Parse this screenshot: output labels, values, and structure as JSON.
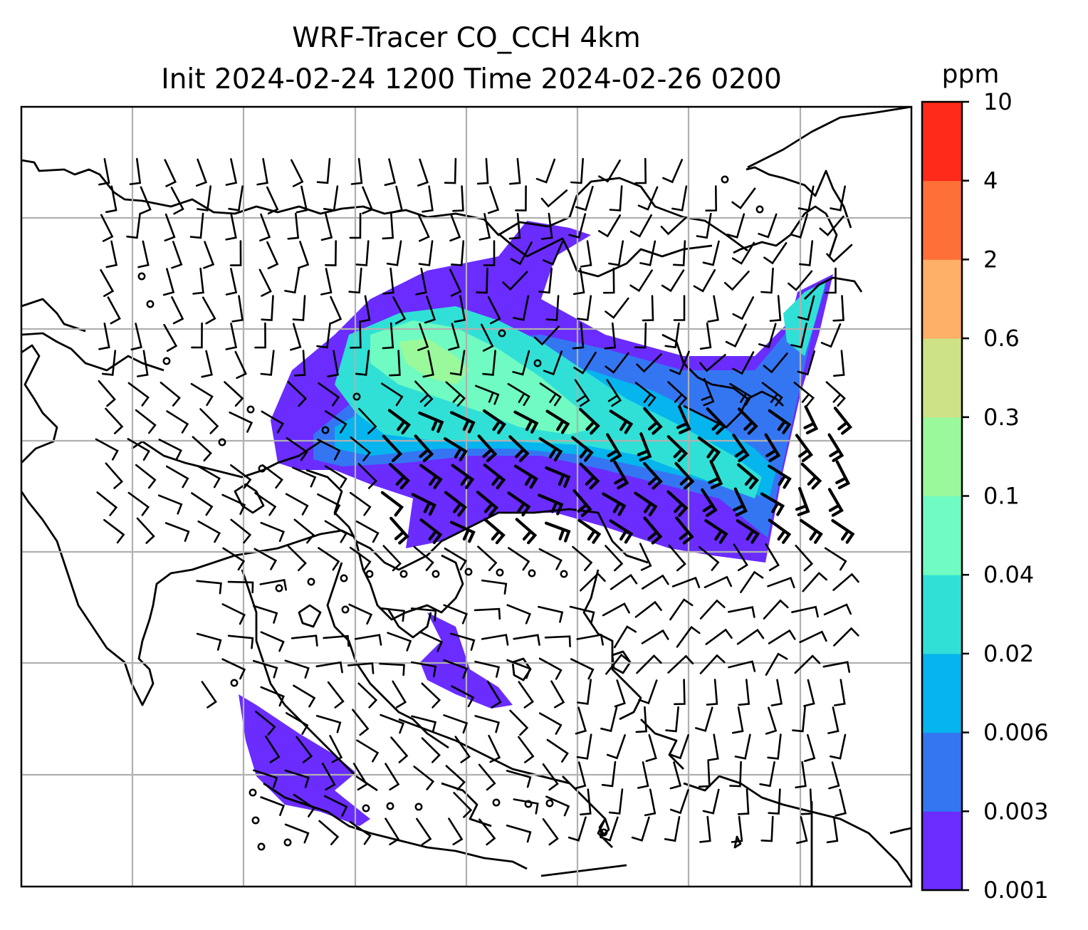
{
  "figure": {
    "title_line1": "WRF-Tracer CO_CCH 4km",
    "title_line2": "Init 2024-02-24 1200 Time 2024-02-26 0200"
  },
  "colorbar": {
    "unit": "ppm",
    "ticks": [
      "0.001",
      "0.003",
      "0.006",
      "0.02",
      "0.04",
      "0.1",
      "0.3",
      "0.6",
      "2",
      "4",
      "10"
    ],
    "colors": [
      "#6a2cff",
      "#3476f2",
      "#06b4ee",
      "#30e0d6",
      "#6ffbc1",
      "#99f99b",
      "#cde186",
      "#fdb066",
      "#fe7038",
      "#ff2a1a"
    ]
  },
  "map": {
    "gridlines": true,
    "coastline_color": "#000000",
    "grid_color": "#b0b0b0",
    "wind_barb_color": "#000000"
  }
}
